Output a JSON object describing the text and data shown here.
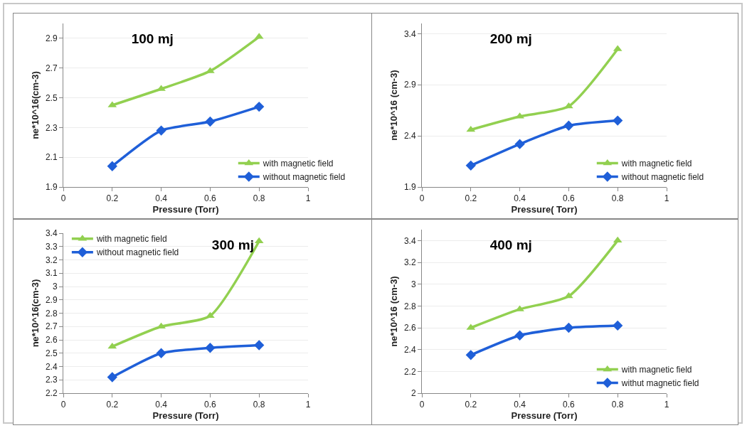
{
  "chart_data": [
    {
      "type": "line",
      "title": "100 mj",
      "xlabel": "Pressure (Torr)",
      "ylabel": "ne*10^16(cm-3)",
      "x": [
        0.2,
        0.4,
        0.6,
        0.8
      ],
      "xlim": [
        0,
        1
      ],
      "xticks": [
        0,
        0.2,
        0.4,
        0.6,
        0.8,
        1
      ],
      "ylim": [
        1.9,
        3.0
      ],
      "yticks": [
        1.9,
        2.1,
        2.3,
        2.5,
        2.7,
        2.9
      ],
      "grid": "y",
      "legend": "bottom right",
      "series": [
        {
          "name": "with magnetic field",
          "color": "#92d050",
          "marker": "triangle",
          "values": [
            2.45,
            2.56,
            2.68,
            2.91
          ]
        },
        {
          "name": "without magnetic field",
          "color": "#1f5fd8",
          "marker": "diamond",
          "values": [
            2.04,
            2.28,
            2.34,
            2.44
          ]
        }
      ]
    },
    {
      "type": "line",
      "title": "200 mj",
      "xlabel": "Pressure( Torr)",
      "ylabel": "ne*10^16 (cm-3)",
      "x": [
        0.2,
        0.4,
        0.6,
        0.8
      ],
      "xlim": [
        0,
        1
      ],
      "xticks": [
        0,
        0.2,
        0.4,
        0.6,
        0.8,
        1
      ],
      "ylim": [
        1.9,
        3.5
      ],
      "yticks": [
        1.9,
        2.4,
        2.9,
        3.4
      ],
      "grid": "y",
      "legend": "bottom right",
      "series": [
        {
          "name": "with magnetic field",
          "color": "#92d050",
          "marker": "triangle",
          "values": [
            2.46,
            2.59,
            2.69,
            3.25
          ]
        },
        {
          "name": "without magnetic field",
          "color": "#1f5fd8",
          "marker": "diamond",
          "values": [
            2.11,
            2.32,
            2.5,
            2.55
          ]
        }
      ]
    },
    {
      "type": "line",
      "title": "300 mj",
      "xlabel": "Pressure (Torr)",
      "ylabel": "ne*10^16(cm-3)",
      "x": [
        0.2,
        0.4,
        0.6,
        0.8
      ],
      "xlim": [
        0,
        1
      ],
      "xticks": [
        0,
        0.2,
        0.4,
        0.6,
        0.8,
        1
      ],
      "ylim": [
        2.2,
        3.4
      ],
      "yticks": [
        2.2,
        2.3,
        2.4,
        2.5,
        2.6,
        2.7,
        2.8,
        2.9,
        3,
        3.1,
        3.2,
        3.3,
        3.4
      ],
      "grid": "y",
      "legend": "top left",
      "series": [
        {
          "name": "with magnetic field",
          "color": "#92d050",
          "marker": "triangle",
          "values": [
            2.55,
            2.7,
            2.78,
            3.34
          ]
        },
        {
          "name": "without magnetic field",
          "color": "#1f5fd8",
          "marker": "diamond",
          "values": [
            2.32,
            2.5,
            2.54,
            2.56
          ]
        }
      ]
    },
    {
      "type": "line",
      "title": "400 mj",
      "xlabel": "Pressure (Torr)",
      "ylabel": "ne*10^16 (cm-3)",
      "x": [
        0.2,
        0.4,
        0.6,
        0.8
      ],
      "xlim": [
        0,
        1
      ],
      "xticks": [
        0,
        0.2,
        0.4,
        0.6,
        0.8,
        1
      ],
      "ylim": [
        2,
        3.5
      ],
      "yticks": [
        2,
        2.2,
        2.4,
        2.6,
        2.8,
        3,
        3.2,
        3.4
      ],
      "grid": "y",
      "legend": "bottom right",
      "series": [
        {
          "name": "with magnetic field",
          "color": "#92d050",
          "marker": "triangle",
          "values": [
            2.6,
            2.77,
            2.89,
            3.4
          ]
        },
        {
          "name": "withut magnetic field",
          "color": "#1f5fd8",
          "marker": "diamond",
          "values": [
            2.35,
            2.53,
            2.6,
            2.62
          ]
        }
      ]
    }
  ]
}
